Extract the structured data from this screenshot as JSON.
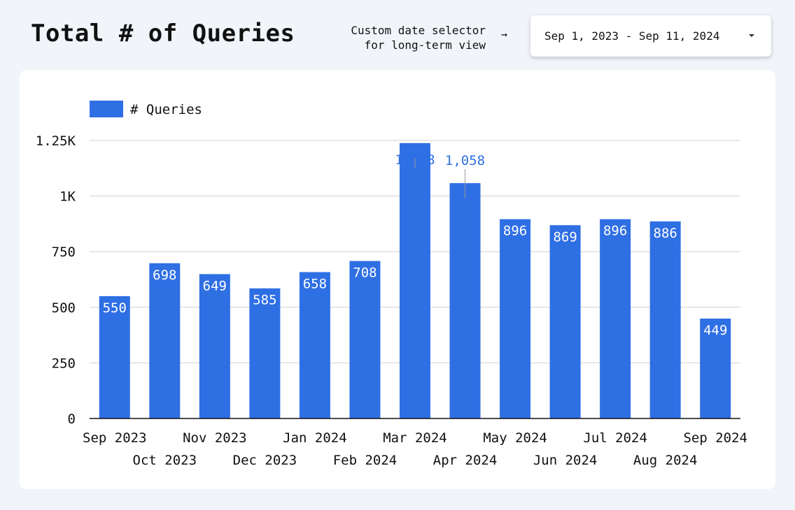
{
  "header": {
    "title": "Total # of Queries",
    "note": [
      "Custom date selector",
      "for long-term view"
    ],
    "arrow": "→",
    "date_range": "Sep 1, 2023 - Sep 11, 2024"
  },
  "colors": {
    "bar": "#2f6fe4",
    "grid": "#d0d0d0",
    "axis": "#111111"
  },
  "chart_data": {
    "type": "bar",
    "title": "Total # of Queries",
    "legend": "# Queries",
    "legend_position": "top-left",
    "grid": true,
    "categories": [
      "Sep 2023",
      "Oct 2023",
      "Nov 2023",
      "Dec 2023",
      "Jan 2024",
      "Feb 2024",
      "Mar 2024",
      "Apr 2024",
      "May 2024",
      "Jun 2024",
      "Jul 2024",
      "Aug 2024",
      "Sep 2024"
    ],
    "series": [
      {
        "name": "# Queries",
        "values": [
          550,
          698,
          649,
          585,
          658,
          708,
          1238,
          1058,
          896,
          869,
          896,
          886,
          449
        ]
      }
    ],
    "data_labels": [
      "550",
      "698",
      "649",
      "585",
      "658",
      "708",
      "1,238",
      "1,058",
      "896",
      "869",
      "896",
      "886",
      "449"
    ],
    "ylim": [
      0,
      1250
    ],
    "yticks": [
      0,
      250,
      500,
      750,
      1000,
      1250
    ],
    "ytick_labels": [
      "0",
      "250",
      "500",
      "750",
      "1K",
      "1.25K"
    ]
  }
}
